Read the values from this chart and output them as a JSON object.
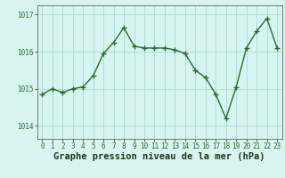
{
  "x": [
    0,
    1,
    2,
    3,
    4,
    5,
    6,
    7,
    8,
    9,
    10,
    11,
    12,
    13,
    14,
    15,
    16,
    17,
    18,
    19,
    20,
    21,
    22,
    23
  ],
  "y": [
    1014.85,
    1015.0,
    1014.9,
    1015.0,
    1015.05,
    1015.35,
    1015.95,
    1016.25,
    1016.65,
    1016.15,
    1016.1,
    1016.1,
    1016.1,
    1016.05,
    1015.95,
    1015.5,
    1015.3,
    1014.85,
    1014.2,
    1015.05,
    1016.1,
    1016.55,
    1016.9,
    1016.1
  ],
  "line_color": "#2d6a2d",
  "marker": "+",
  "marker_size": 4,
  "marker_linewidth": 1.0,
  "linewidth": 1.0,
  "background_color": "#d6f5f0",
  "grid_color": "#b0ddd8",
  "xlabel": "Graphe pression niveau de la mer (hPa)",
  "xlabel_fontsize": 7.5,
  "ytick_labels": [
    "1014",
    "1015",
    "1016",
    "1017"
  ],
  "ytick_values": [
    1014,
    1015,
    1016,
    1017
  ],
  "xtick_values": [
    0,
    1,
    2,
    3,
    4,
    5,
    6,
    7,
    8,
    9,
    10,
    11,
    12,
    13,
    14,
    15,
    16,
    17,
    18,
    19,
    20,
    21,
    22,
    23
  ],
  "ylim": [
    1013.65,
    1017.25
  ],
  "xlim": [
    -0.5,
    23.5
  ],
  "tick_fontsize": 5.5,
  "axes_color": "#666666",
  "tick_color": "#2d6a2d",
  "label_color": "#1a3a1a"
}
